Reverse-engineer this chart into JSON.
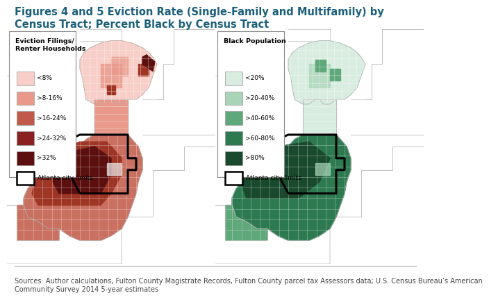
{
  "title_line1": "Figures 4 and 5 Eviction Rate (Single-Family and Multifamily) by",
  "title_line2": "Census Tract; Percent Black by Census Tract",
  "title_color": "#1a5f7a",
  "title_fontsize": 10.5,
  "source_text": "Sources: Author calculations, Fulton County Magistrate Records, Fulton County parcel tax Assessors data; U.S. Census Bureau’s American\nCommunity Survey 2014 5-year estimates",
  "source_fontsize": 7.0,
  "left_legend_title": "Eviction Filings/\nRenter Households",
  "left_legend_entries": [
    "<8%",
    ">8-16%",
    ">16-24%",
    ">24-32%",
    ">32%",
    "Atlanta city limits"
  ],
  "left_legend_colors": [
    "#f7cfc8",
    "#e8998a",
    "#c0594a",
    "#8b2020",
    "#5c0f0f",
    "#ffffff"
  ],
  "right_legend_title": "Black Population",
  "right_legend_entries": [
    "<20%",
    ">20-40%",
    ">40-60%",
    ">60-80%",
    ">80%",
    "Atlanta city limits"
  ],
  "right_legend_colors": [
    "#d8ede0",
    "#aad4b8",
    "#5fa87a",
    "#2d7a50",
    "#1a4a2e",
    "#ffffff"
  ],
  "bg_color": "#ffffff"
}
